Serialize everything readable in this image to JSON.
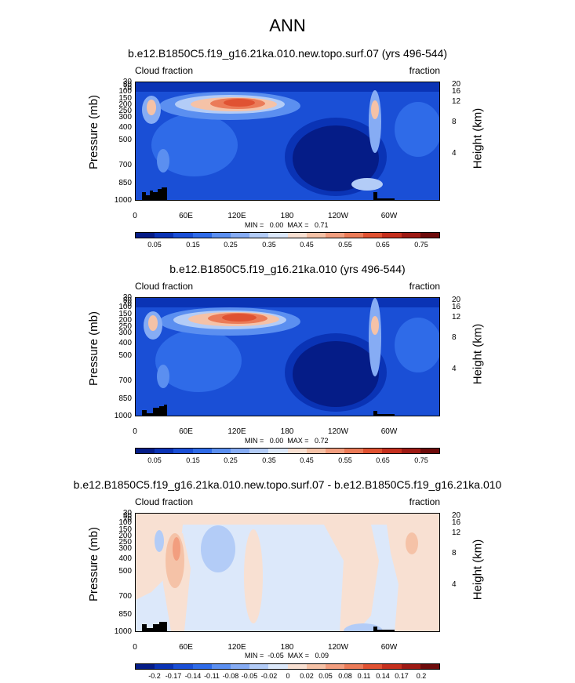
{
  "figure": {
    "title": "ANN"
  },
  "chart_data": [
    {
      "type": "heatmap",
      "title": "b.e12.B1850C5.f19_g16.21ka.010.new.topo.surf.07 (yrs 496-544)",
      "left_subtitle": "Cloud fraction",
      "right_subtitle": "fraction",
      "ylabel": "Pressure (mb)",
      "ylabel_right": "Height (km)",
      "x_ticks": [
        "0",
        "60E",
        "120E",
        "180",
        "120W",
        "60W"
      ],
      "y_ticks": [
        "30",
        "50",
        "70",
        "100",
        "150",
        "200",
        "250",
        "300",
        "400",
        "500",
        "700",
        "850",
        "1000"
      ],
      "y2_ticks": [
        "20",
        "16",
        "12",
        "8",
        "4"
      ],
      "min": "0.00",
      "max": "0.71",
      "minmax_text": "MIN =   0.00  MAX =   0.71",
      "colorbar_labels": [
        "0.05",
        "0.15",
        "0.25",
        "0.35",
        "0.45",
        "0.55",
        "0.65",
        "0.75"
      ],
      "colorbar_colors": [
        "#051C87",
        "#0A33B5",
        "#1A4FD6",
        "#2F6BE8",
        "#5B8FF0",
        "#86ACF4",
        "#B3CCF7",
        "#DCE8FA",
        "#F8E0D2",
        "#F5C2A7",
        "#F29E7F",
        "#EB7B58",
        "#E05232",
        "#C5301E",
        "#9E1A14",
        "#6E0B0B"
      ]
    },
    {
      "type": "heatmap",
      "title": "b.e12.B1850C5.f19_g16.21ka.010 (yrs 496-544)",
      "left_subtitle": "Cloud fraction",
      "right_subtitle": "fraction",
      "ylabel": "Pressure (mb)",
      "ylabel_right": "Height (km)",
      "x_ticks": [
        "0",
        "60E",
        "120E",
        "180",
        "120W",
        "60W"
      ],
      "y_ticks": [
        "30",
        "50",
        "70",
        "100",
        "150",
        "200",
        "250",
        "300",
        "400",
        "500",
        "700",
        "850",
        "1000"
      ],
      "y2_ticks": [
        "20",
        "16",
        "12",
        "8",
        "4"
      ],
      "min": "0.00",
      "max": "0.72",
      "minmax_text": "MIN =   0.00  MAX =   0.72",
      "colorbar_labels": [
        "0.05",
        "0.15",
        "0.25",
        "0.35",
        "0.45",
        "0.55",
        "0.65",
        "0.75"
      ],
      "colorbar_colors": [
        "#051C87",
        "#0A33B5",
        "#1A4FD6",
        "#2F6BE8",
        "#5B8FF0",
        "#86ACF4",
        "#B3CCF7",
        "#DCE8FA",
        "#F8E0D2",
        "#F5C2A7",
        "#F29E7F",
        "#EB7B58",
        "#E05232",
        "#C5301E",
        "#9E1A14",
        "#6E0B0B"
      ]
    },
    {
      "type": "heatmap",
      "title": "b.e12.B1850C5.f19_g16.21ka.010.new.topo.surf.07 - b.e12.B1850C5.f19_g16.21ka.010",
      "left_subtitle": "Cloud fraction",
      "right_subtitle": "fraction",
      "ylabel": "Pressure (mb)",
      "ylabel_right": "Height (km)",
      "x_ticks": [
        "0",
        "60E",
        "120E",
        "180",
        "120W",
        "60W"
      ],
      "y_ticks": [
        "30",
        "50",
        "70",
        "100",
        "150",
        "200",
        "250",
        "300",
        "400",
        "500",
        "700",
        "850",
        "1000"
      ],
      "y2_ticks": [
        "20",
        "16",
        "12",
        "8",
        "4"
      ],
      "min": "-0.05",
      "max": "0.09",
      "minmax_text": "MIN =  -0.05  MAX =   0.09",
      "colorbar_labels": [
        "-0.2",
        "-0.17",
        "-0.14",
        "-0.11",
        "-0.08",
        "-0.05",
        "-0.02",
        "0",
        "0.02",
        "0.05",
        "0.08",
        "0.11",
        "0.14",
        "0.17",
        "0.2"
      ],
      "colorbar_colors": [
        "#051C87",
        "#0A33B5",
        "#1A4FD6",
        "#2F6BE8",
        "#5B8FF0",
        "#86ACF4",
        "#B3CCF7",
        "#DCE8FA",
        "#F8E0D2",
        "#F5C2A7",
        "#F29E7F",
        "#EB7B58",
        "#E05232",
        "#C5301E",
        "#9E1A14",
        "#6E0B0B"
      ]
    }
  ]
}
